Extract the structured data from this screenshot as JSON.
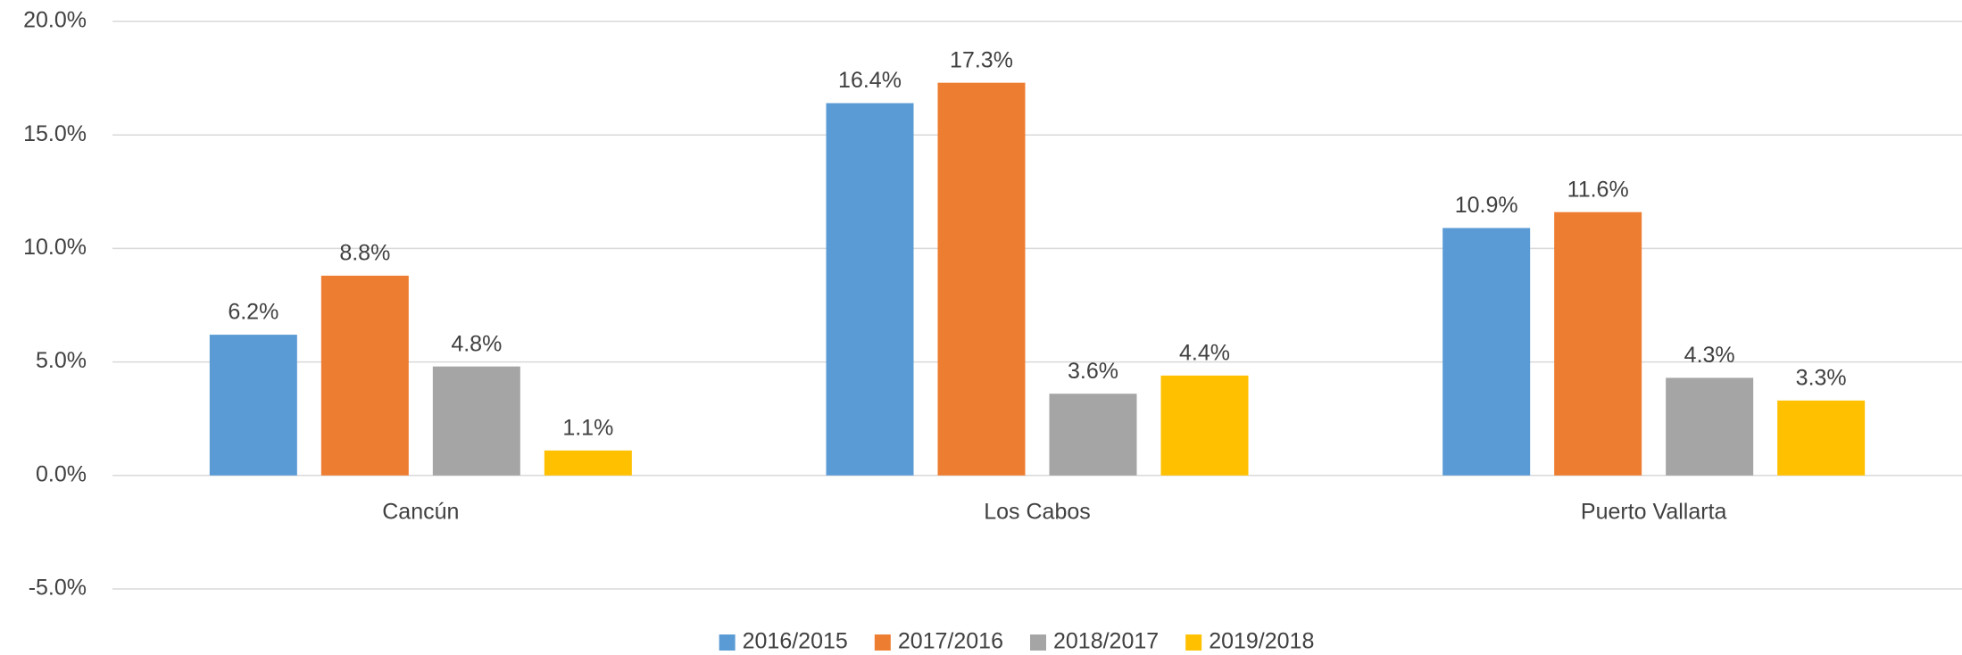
{
  "chart_data": {
    "type": "bar",
    "categories": [
      "Cancún",
      "Los Cabos",
      "Puerto Vallarta"
    ],
    "series": [
      {
        "name": "2016/2015",
        "color": "#5b9bd5",
        "values": [
          6.2,
          16.4,
          10.9
        ],
        "value_labels": [
          "6.2%",
          "16.4%",
          "10.9%"
        ]
      },
      {
        "name": "2017/2016",
        "color": "#ed7d31",
        "values": [
          8.8,
          17.3,
          11.6
        ],
        "value_labels": [
          "8.8%",
          "17.3%",
          "11.6%"
        ]
      },
      {
        "name": "2018/2017",
        "color": "#a5a5a5",
        "values": [
          4.8,
          3.6,
          4.3
        ],
        "value_labels": [
          "4.8%",
          "3.6%",
          "4.3%"
        ]
      },
      {
        "name": "2019/2018",
        "color": "#ffc000",
        "values": [
          1.1,
          4.4,
          3.3
        ],
        "value_labels": [
          "1.1%",
          "4.4%",
          "3.3%"
        ]
      }
    ],
    "ylim": [
      -5,
      20
    ],
    "yticks": [
      {
        "value": -5,
        "label": "-5.0%"
      },
      {
        "value": 0,
        "label": "0.0%"
      },
      {
        "value": 5,
        "label": "5.0%"
      },
      {
        "value": 10,
        "label": "10.0%"
      },
      {
        "value": 15,
        "label": "15.0%"
      },
      {
        "value": 20,
        "label": "20.0%"
      }
    ],
    "grid": true,
    "legend": "bottom"
  }
}
